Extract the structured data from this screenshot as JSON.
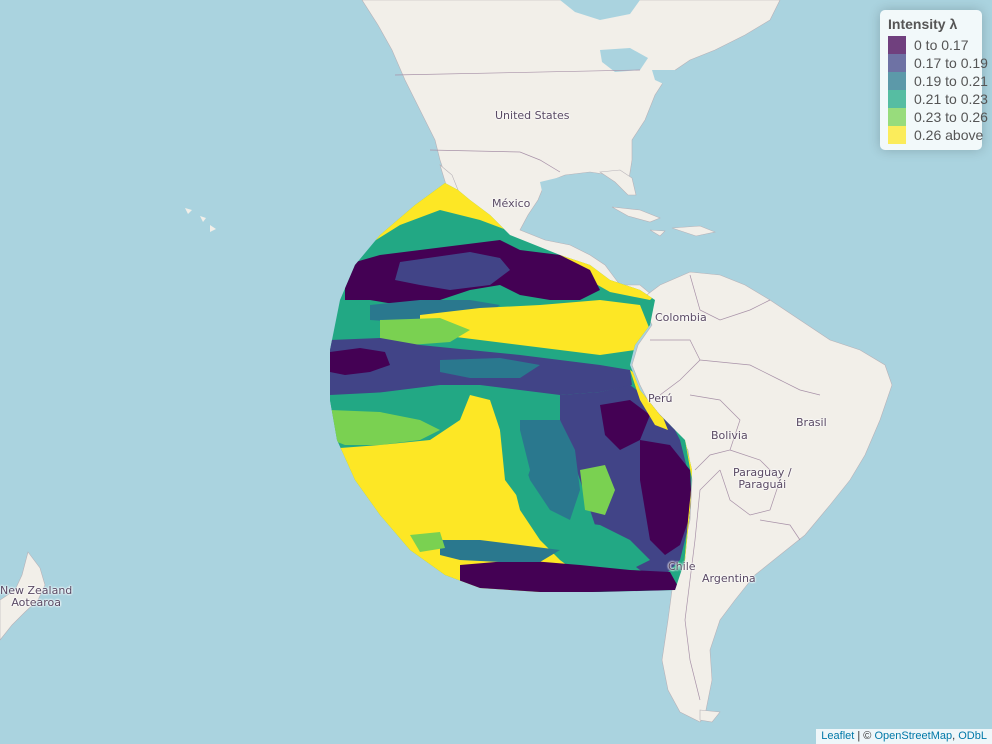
{
  "map": {
    "labels": {
      "united_states": "United States",
      "mexico": "México",
      "colombia": "Colombia",
      "peru": "Perú",
      "bolivia": "Bolivia",
      "brasil": "Brasil",
      "paraguay_line1": "Paraguay /",
      "paraguay_line2": "Paraguái",
      "argentina": "Argentina",
      "chile": "Chile",
      "new_zealand_line1": "New Zealand",
      "new_zealand_line2": "Aotearoa"
    },
    "colors": {
      "ocean": "#aad3df",
      "land": "#f2efe9",
      "border": "#9e9aa5"
    }
  },
  "legend": {
    "title": "Intensity λ",
    "items": [
      {
        "label": "0 to 0.17",
        "color": "#440154"
      },
      {
        "label": "0.17 to 0.19",
        "color": "#414487"
      },
      {
        "label": "0.19 to 0.21",
        "color": "#2a788e"
      },
      {
        "label": "0.21 to 0.23",
        "color": "#22a884"
      },
      {
        "label": "0.23 to 0.26",
        "color": "#7ad151"
      },
      {
        "label": "0.26 above",
        "color": "#fde725"
      }
    ]
  },
  "attribution": {
    "leaflet": "Leaflet",
    "separator": " | © ",
    "osm": "OpenStreetMap",
    "sep2": ", ",
    "odbl": "ODbL"
  }
}
